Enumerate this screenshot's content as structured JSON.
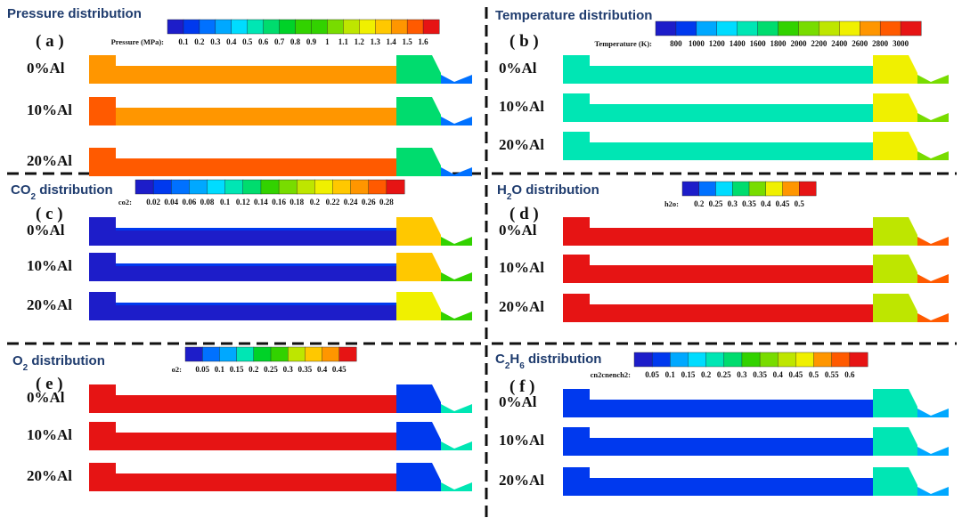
{
  "figure": {
    "colormap": [
      "#1d1dc9",
      "#0039ee",
      "#0071ff",
      "#00a8ff",
      "#00dcff",
      "#00e6b4",
      "#00dc6e",
      "#00d228",
      "#32d200",
      "#78dc00",
      "#bee600",
      "#f0f000",
      "#ffc800",
      "#ff9600",
      "#ff5a00",
      "#e61414"
    ],
    "colors": {
      "title": "#1f3c6e",
      "text": "#111111",
      "divider": "#111111"
    },
    "row_labels": [
      "0%Al",
      "10%Al",
      "20%Al"
    ],
    "panels": [
      {
        "id": "a",
        "label": "( a )",
        "title": "Pressure distribution",
        "title_sub": "",
        "colorbar_name": "Pressure (MPa):",
        "ticks": [
          "0.1",
          "0.2",
          "0.3",
          "0.4",
          "0.5",
          "0.6",
          "0.7",
          "0.8",
          "0.9",
          "1",
          "1.1",
          "1.2",
          "1.3",
          "1.4",
          "1.5",
          "1.6"
        ],
        "rows": [
          {
            "label": "0%Al",
            "chamber": 0.85,
            "main": 0.85,
            "core": 0.85,
            "throat": 0.4,
            "nozzle": 0.15
          },
          {
            "label": "10%Al",
            "chamber": 0.9,
            "main": 0.86,
            "core": 0.86,
            "throat": 0.4,
            "nozzle": 0.15
          },
          {
            "label": "20%Al",
            "chamber": 0.94,
            "main": 0.92,
            "core": 0.92,
            "throat": 0.42,
            "nozzle": 0.15
          }
        ]
      },
      {
        "id": "b",
        "label": "( b )",
        "title": "Temperature distribution",
        "title_sub": "",
        "colorbar_name": "Temperature (K):",
        "ticks": [
          "800",
          "1000",
          "1200",
          "1400",
          "1600",
          "1800",
          "2000",
          "2200",
          "2400",
          "2600",
          "2800",
          "3000"
        ],
        "rows": [
          {
            "label": "0%Al",
            "chamber": 0.3,
            "main": 0.3,
            "core": 0.3,
            "throat": 0.72,
            "nozzle": 0.6
          },
          {
            "label": "10%Al",
            "chamber": 0.3,
            "main": 0.3,
            "core": 0.3,
            "throat": 0.72,
            "nozzle": 0.6
          },
          {
            "label": "20%Al",
            "chamber": 0.3,
            "main": 0.3,
            "core": 0.3,
            "throat": 0.72,
            "nozzle": 0.6
          }
        ]
      },
      {
        "id": "c",
        "label": "( c )",
        "title": "CO",
        "title_sub": "2",
        "title_suffix": " distribution",
        "colorbar_name": "co2:",
        "ticks": [
          "0.02",
          "0.04",
          "0.06",
          "0.08",
          "0.1",
          "0.12",
          "0.14",
          "0.16",
          "0.18",
          "0.2",
          "0.22",
          "0.24",
          "0.26",
          "0.28"
        ],
        "rows": [
          {
            "label": "0%Al",
            "chamber": 0.02,
            "main": 0.02,
            "core": 0.04,
            "throat": 0.82,
            "nozzle": 0.5
          },
          {
            "label": "10%Al",
            "chamber": 0.02,
            "main": 0.02,
            "core": 0.04,
            "throat": 0.8,
            "nozzle": 0.5
          },
          {
            "label": "20%Al",
            "chamber": 0.02,
            "main": 0.02,
            "core": 0.04,
            "throat": 0.7,
            "nozzle": 0.5
          }
        ]
      },
      {
        "id": "d",
        "label": "( d )",
        "title": "H",
        "title_sub": "2",
        "title_suffix": "O distribution",
        "colorbar_name": "h2o:",
        "ticks": [
          "0.2",
          "0.25",
          "0.3",
          "0.35",
          "0.4",
          "0.45",
          "0.5"
        ],
        "rows": [
          {
            "label": "0%Al",
            "chamber": 0.98,
            "main": 0.98,
            "core": 0.98,
            "throat": 0.68,
            "nozzle": 0.96
          },
          {
            "label": "10%Al",
            "chamber": 0.98,
            "main": 0.98,
            "core": 0.98,
            "throat": 0.68,
            "nozzle": 0.96
          },
          {
            "label": "20%Al",
            "chamber": 0.98,
            "main": 0.98,
            "core": 0.98,
            "throat": 0.68,
            "nozzle": 0.96
          }
        ]
      },
      {
        "id": "e",
        "label": "( e )",
        "title": "O",
        "title_sub": "2",
        "title_suffix": " distribution",
        "colorbar_name": "o2:",
        "ticks": [
          "0.05",
          "0.1",
          "0.15",
          "0.2",
          "0.25",
          "0.3",
          "0.35",
          "0.4",
          "0.45"
        ],
        "rows": [
          {
            "label": "0%Al",
            "chamber": 0.97,
            "main": 0.97,
            "core": 0.97,
            "throat": 0.05,
            "nozzle": 0.3
          },
          {
            "label": "10%Al",
            "chamber": 0.97,
            "main": 0.97,
            "core": 0.97,
            "throat": 0.05,
            "nozzle": 0.3
          },
          {
            "label": "20%Al",
            "chamber": 0.97,
            "main": 0.97,
            "core": 0.97,
            "throat": 0.05,
            "nozzle": 0.3
          }
        ]
      },
      {
        "id": "f",
        "label": "( f )",
        "title": "C",
        "title_sub": "2",
        "title_mid": "H",
        "title_sub2": "6",
        "title_suffix": " distribution",
        "colorbar_name": "cn2cnench2:",
        "ticks": [
          "0.05",
          "0.1",
          "0.15",
          "0.2",
          "0.25",
          "0.3",
          "0.35",
          "0.4",
          "0.45",
          "0.5",
          "0.55",
          "0.6"
        ],
        "rows": [
          {
            "label": "0%Al",
            "chamber": 0.04,
            "main": 0.04,
            "core": 0.04,
            "throat": 0.32,
            "nozzle": 0.2
          },
          {
            "label": "10%Al",
            "chamber": 0.04,
            "main": 0.04,
            "core": 0.04,
            "throat": 0.32,
            "nozzle": 0.2
          },
          {
            "label": "20%Al",
            "chamber": 0.04,
            "main": 0.04,
            "core": 0.04,
            "throat": 0.3,
            "nozzle": 0.2
          }
        ]
      }
    ]
  }
}
